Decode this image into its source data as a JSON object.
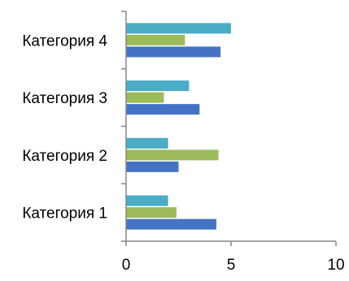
{
  "chart_data": {
    "type": "bar",
    "orientation": "horizontal",
    "categories": [
      "Категория 1",
      "Категория 2",
      "Категория 3",
      "Категория 4"
    ],
    "series": [
      {
        "values": [
          4.3,
          2.5,
          3.5,
          4.5
        ],
        "color": "#4472C4"
      },
      {
        "values": [
          2.4,
          4.4,
          1.8,
          2.8
        ],
        "color": "#9BBB59"
      },
      {
        "values": [
          2.0,
          2.0,
          3.0,
          5.0
        ],
        "color": "#4BACC6"
      }
    ],
    "x_ticks": [
      "0",
      "5",
      "10"
    ],
    "xlim": [
      0,
      10
    ],
    "title": "",
    "xlabel": "",
    "ylabel": "",
    "grid": false,
    "legend": "none"
  }
}
